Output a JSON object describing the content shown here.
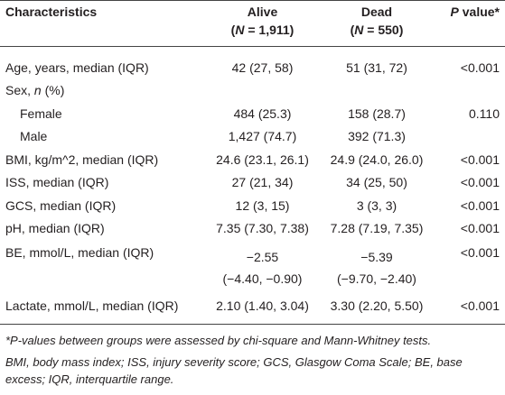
{
  "table": {
    "header": {
      "characteristics": "Characteristics",
      "alive": {
        "label": "Alive",
        "open": "(",
        "n": "N",
        "count": " = 1,911)"
      },
      "dead": {
        "label": "Dead",
        "open": "(",
        "n": "N",
        "count": " = 550)"
      },
      "p_value": {
        "p": "P",
        "label": " value*"
      }
    },
    "rows": [
      [
        "Age, years, median (IQR)",
        "42 (27, 58)",
        "51 (31, 72)",
        "<0.001"
      ],
      [
        {
          "before": "Sex, ",
          "italic": "n",
          "after": " (%)"
        }
      ],
      [
        "Female",
        "484 (25.3)",
        "158 (28.7)",
        "0.110"
      ],
      [
        "Male",
        "1,427 (74.7)",
        "392 (71.3)"
      ],
      [
        "BMI, kg/m^2, median (IQR)",
        "24.6 (23.1, 26.1)",
        "24.9 (24.0, 26.0)",
        "<0.001"
      ],
      [
        "ISS, median (IQR)",
        "27 (21, 34)",
        "34 (25, 50)",
        "<0.001"
      ],
      [
        "GCS, median (IQR)",
        "12 (3, 15)",
        "3 (3, 3)",
        "<0.001"
      ],
      [
        "pH, median (IQR)",
        "7.35 (7.30, 7.38)",
        "7.28 (7.19, 7.35)",
        "<0.001"
      ],
      [
        "BE, mmol/L, median (IQR)",
        [
          "−2.55",
          "(−4.40, −0.90)"
        ],
        [
          "−5.39",
          "(−9.70, −2.40)"
        ],
        "<0.001"
      ],
      [
        "Lactate, mmol/L, median (IQR)",
        "2.10 (1.40, 3.04)",
        "3.30 (2.20, 5.50)",
        "<0.001"
      ]
    ],
    "footnotes": [
      "*P-values between groups were assessed by chi-square and Mann-Whitney tests.",
      "BMI, body mass index; ISS, injury severity score; GCS, Glasgow Coma Scale; BE, base excess; IQR, interquartile range."
    ]
  }
}
